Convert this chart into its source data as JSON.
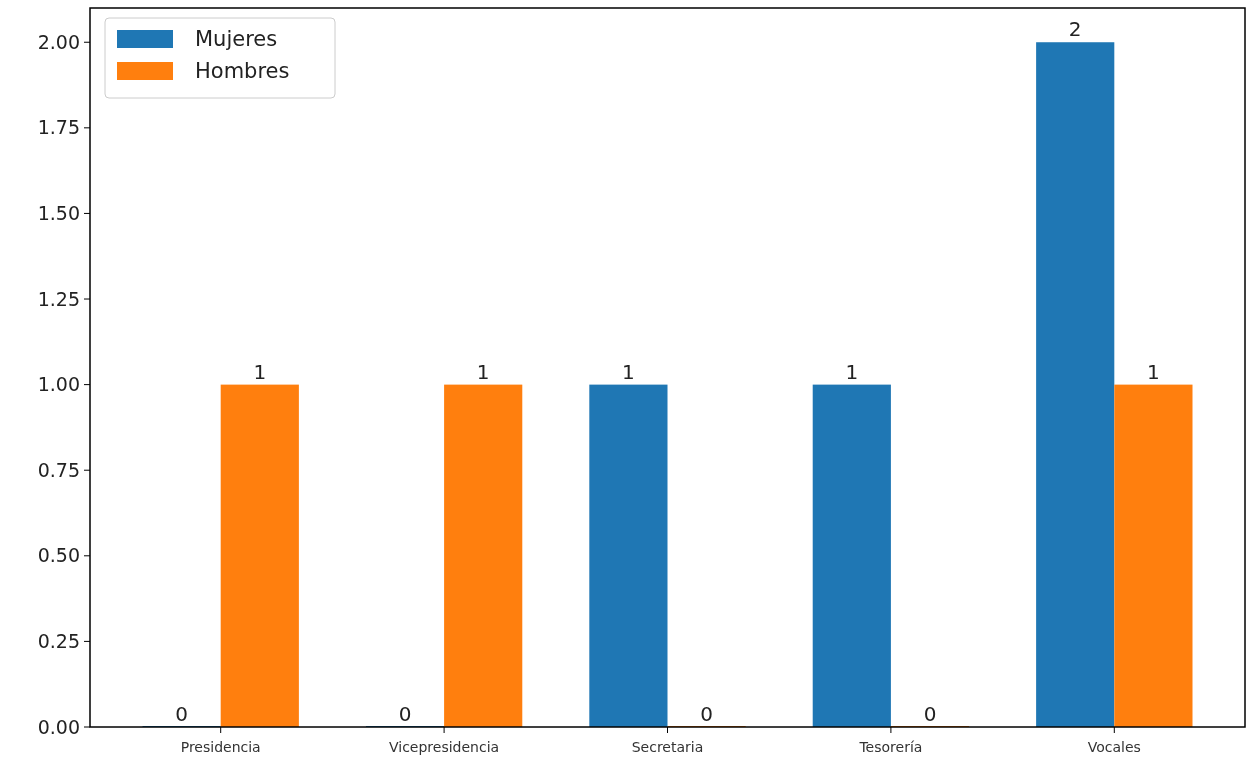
{
  "chart_data": {
    "type": "bar",
    "categories": [
      "Presidencia",
      "Vicepresidencia",
      "Secretaria",
      "Tesorería",
      "Vocales"
    ],
    "series": [
      {
        "name": "Mujeres",
        "color": "#1f77b4",
        "values": [
          0,
          0,
          1,
          1,
          2
        ]
      },
      {
        "name": "Hombres",
        "color": "#ff7f0e",
        "values": [
          1,
          1,
          0,
          0,
          1
        ]
      }
    ],
    "ylim": [
      0,
      2.1
    ],
    "yticks": [
      {
        "value": 0,
        "label": "0.00"
      },
      {
        "value": 0.25,
        "label": "0.25"
      },
      {
        "value": 0.5,
        "label": "0.50"
      },
      {
        "value": 0.75,
        "label": "0.75"
      },
      {
        "value": 1,
        "label": "1.00"
      },
      {
        "value": 1.25,
        "label": "1.25"
      },
      {
        "value": 1.5,
        "label": "1.50"
      },
      {
        "value": 1.75,
        "label": "1.75"
      },
      {
        "value": 2,
        "label": "2.00"
      }
    ],
    "data_labels": true,
    "legend": "top left",
    "grid": false
  }
}
